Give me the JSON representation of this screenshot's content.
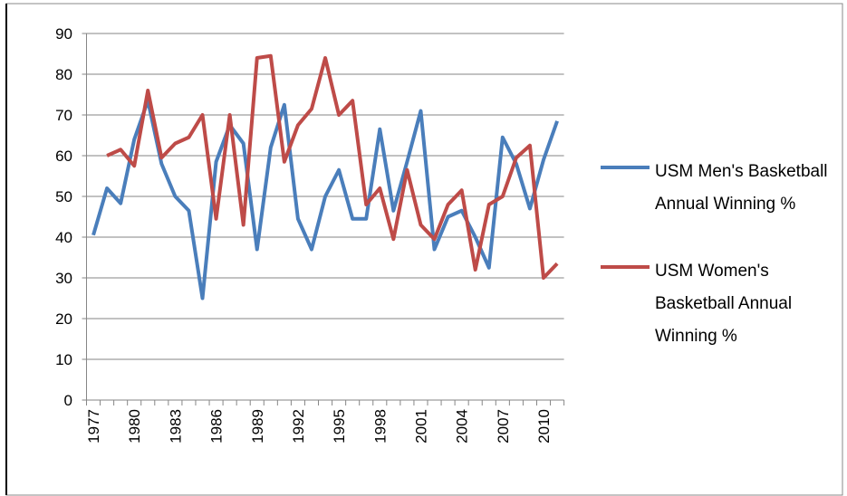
{
  "chart_data": {
    "type": "line",
    "categories": [
      "1977",
      null,
      null,
      "1980",
      null,
      null,
      "1983",
      null,
      null,
      "1986",
      null,
      null,
      "1989",
      null,
      null,
      "1992",
      null,
      null,
      "1995",
      null,
      null,
      "1998",
      null,
      null,
      "2001",
      null,
      null,
      "2004",
      null,
      null,
      "2007",
      null,
      null,
      "2010",
      null
    ],
    "series": [
      {
        "name": "USM Men's Basketball Annual Winning %",
        "color": "#4a7ebb",
        "values": [
          40.5,
          52,
          48.3,
          64,
          73.5,
          58,
          50,
          46.5,
          25,
          58.5,
          67.5,
          63,
          37,
          62,
          72.5,
          44.5,
          37,
          50,
          56.5,
          44.5,
          44.5,
          66.5,
          46.5,
          58.5,
          71,
          37,
          45,
          46.5,
          40,
          32.5,
          64.5,
          58,
          47,
          59,
          68.5
        ]
      },
      {
        "name": "USM Women's Basketball Annual Winning %",
        "color": "#be4b48",
        "values": [
          null,
          60,
          61.5,
          57.5,
          76,
          59.5,
          63,
          64.5,
          70,
          44.5,
          70,
          43,
          84,
          84.5,
          58.5,
          67.5,
          71.5,
          84,
          70,
          73.5,
          48,
          52,
          39.5,
          56.5,
          43,
          39.5,
          48,
          51.5,
          32,
          48,
          50,
          59.5,
          62.5,
          30,
          33.5
        ]
      }
    ],
    "ylim": [
      0,
      90
    ],
    "yticks": [
      0,
      10,
      20,
      30,
      40,
      50,
      60,
      70,
      80,
      90
    ],
    "grid": true,
    "legend": "right"
  }
}
